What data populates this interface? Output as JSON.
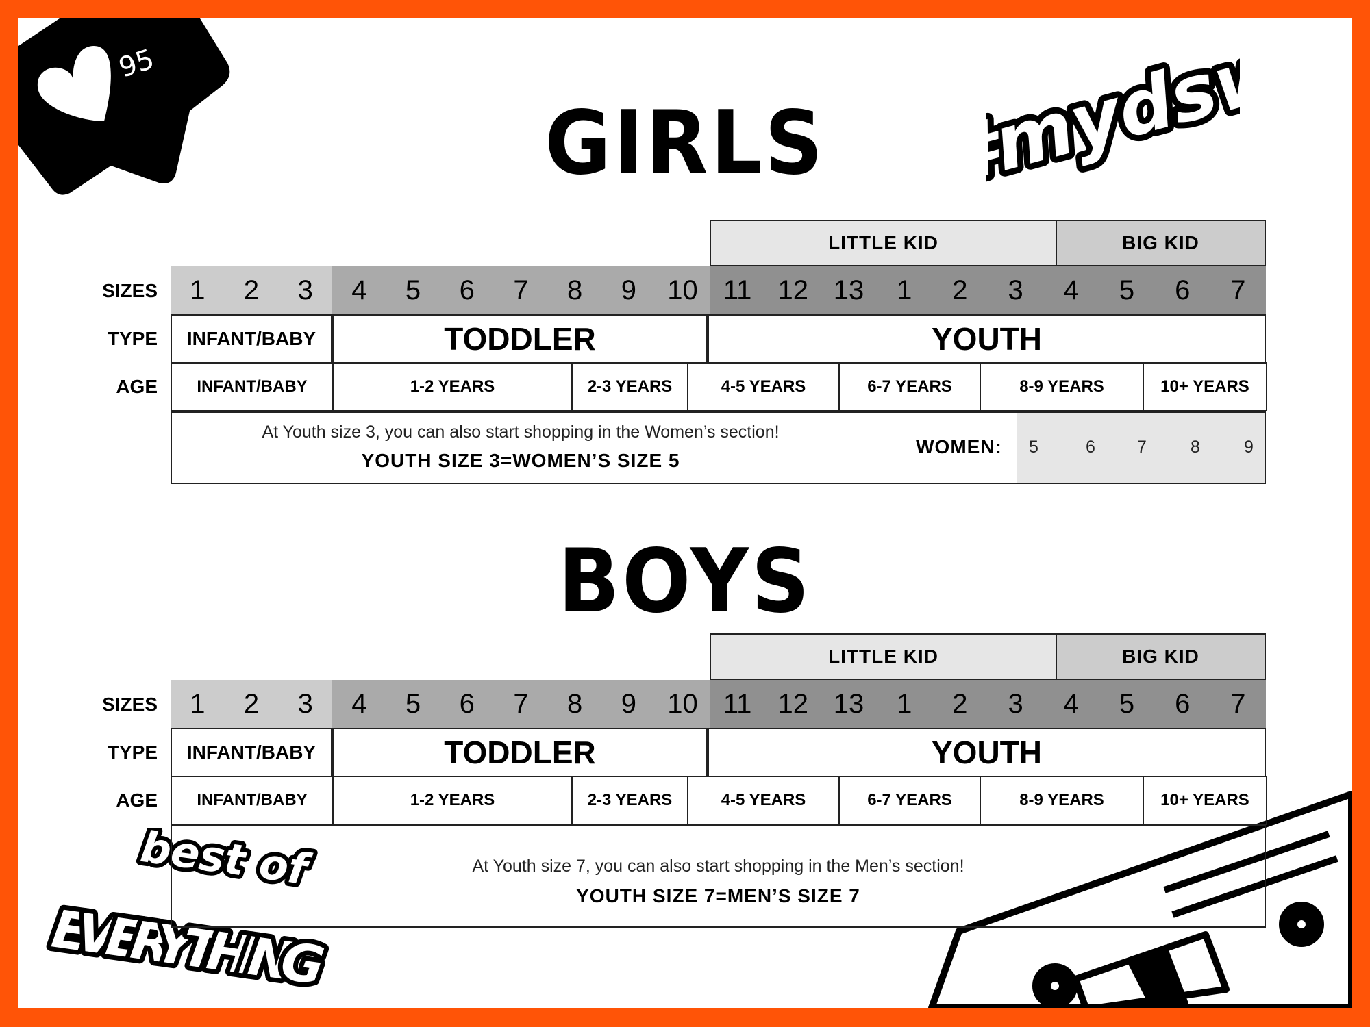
{
  "badge": {
    "likes": "95",
    "icon": "heart-icon"
  },
  "hashtag_logo": "#mydsw",
  "bottom_logo": "best of EVERYTHING",
  "colors": {
    "border": "#ff5407",
    "infant_sizes": "#cccccc",
    "toddler_sizes": "#aaaaaa",
    "youth_sizes": "#909090",
    "little_kid": "#e6e6e6",
    "big_kid": "#cccccc",
    "women_bg": "#e6e6e6"
  },
  "row_labels": {
    "sizes": "SIZES",
    "type": "TYPE",
    "age": "AGE"
  },
  "girls": {
    "title": "GIRLS",
    "groups": {
      "little_kid": "LITTLE KID",
      "big_kid": "BIG KID"
    },
    "sizes": [
      "1",
      "2",
      "3",
      "4",
      "5",
      "6",
      "7",
      "8",
      "9",
      "10",
      "11",
      "12",
      "13",
      "1",
      "2",
      "3",
      "4",
      "5",
      "6",
      "7"
    ],
    "types": [
      "INFANT/BABY",
      "TODDLER",
      "YOUTH"
    ],
    "ages": [
      "INFANT/BABY",
      "1-2 YEARS",
      "2-3 YEARS",
      "4-5 YEARS",
      "6-7 YEARS",
      "8-9 YEARS",
      "10+ YEARS"
    ],
    "note": "At Youth size 3, you can also start shopping in the Women’s section!",
    "note_bold": "YOUTH SIZE 3=WOMEN’S SIZE 5",
    "women_label": "WOMEN:",
    "women_sizes": [
      "5",
      "6",
      "7",
      "8",
      "9"
    ]
  },
  "boys": {
    "title": "BOYS",
    "groups": {
      "little_kid": "LITTLE KID",
      "big_kid": "BIG KID"
    },
    "sizes": [
      "1",
      "2",
      "3",
      "4",
      "5",
      "6",
      "7",
      "8",
      "9",
      "10",
      "11",
      "12",
      "13",
      "1",
      "2",
      "3",
      "4",
      "5",
      "6",
      "7"
    ],
    "types": [
      "INFANT/BABY",
      "TODDLER",
      "YOUTH"
    ],
    "ages": [
      "INFANT/BABY",
      "1-2 YEARS",
      "2-3 YEARS",
      "4-5 YEARS",
      "6-7 YEARS",
      "8-9 YEARS",
      "10+ YEARS"
    ],
    "note": "At Youth size 7, you can also start shopping in the Men’s section!",
    "note_bold": "YOUTH SIZE 7=MEN’S SIZE 7"
  }
}
